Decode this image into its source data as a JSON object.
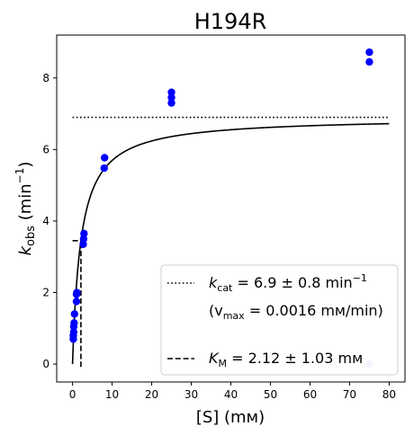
{
  "chart_data": {
    "type": "scatter",
    "title": "H194R",
    "xlabel": "[S] (mм)",
    "ylabel_main": "k",
    "ylabel_sub": "obs",
    "ylabel_unit": " (min",
    "ylabel_sup": "−1",
    "ylabel_close": ")",
    "xlim": [
      -4,
      84
    ],
    "ylim": [
      -0.5,
      9.2
    ],
    "xticks": [
      0,
      10,
      20,
      30,
      40,
      50,
      60,
      70,
      80
    ],
    "yticks": [
      0,
      2,
      4,
      6,
      8
    ],
    "series": [
      {
        "color": "#0000ff",
        "x": [
          0.2,
          0.2,
          0.3,
          0.3,
          0.4,
          0.5,
          1.0,
          1.0,
          1.1,
          2.7,
          2.8,
          2.9,
          8.0,
          8.1,
          25.0,
          25.0,
          25.0,
          75.0,
          75.0
        ],
        "y": [
          0.7,
          0.8,
          0.9,
          1.05,
          1.15,
          1.4,
          1.75,
          1.95,
          2.0,
          3.35,
          3.5,
          3.65,
          5.48,
          5.77,
          7.3,
          7.45,
          7.6,
          8.45,
          8.72
        ]
      }
    ],
    "outlier": {
      "x": 75.0,
      "y": 0.0,
      "color": "#c8c8f8"
    },
    "fit": {
      "kcat": 6.9,
      "Km": 2.12,
      "x_end": 80
    },
    "kcat_line": {
      "y": 6.9,
      "x": [
        0,
        80
      ]
    },
    "km_line": {
      "x": 2.12,
      "y_start": 3.45,
      "hstart": 0
    },
    "legend": {
      "kcat_prefix": "k",
      "kcat_sub": "cat",
      "kcat_value": " = 6.9 ± 0.8 min",
      "kcat_sup": "−1",
      "vmax_open": "(v",
      "vmax_sub": "max",
      "vmax_value": " = 0.0016 mм/min)",
      "km_prefix": "K",
      "km_sub": "M",
      "km_value": " = 2.12 ± 1.03 mм"
    }
  }
}
